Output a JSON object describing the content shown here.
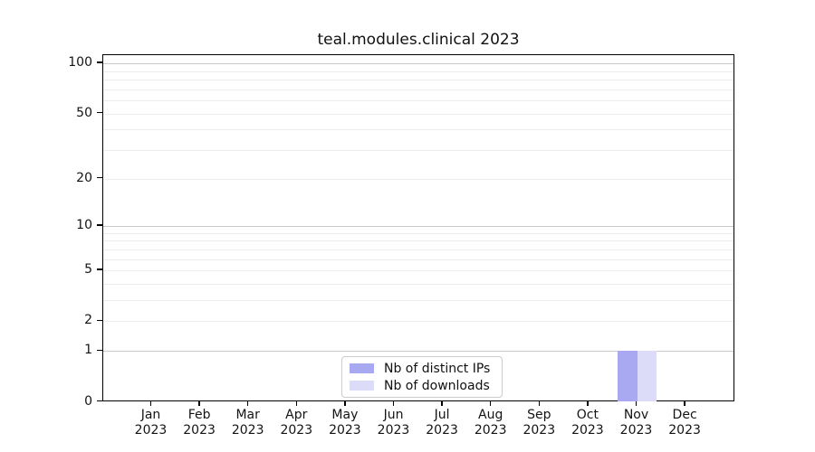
{
  "chart": {
    "title": "teal.modules.clinical 2023"
  },
  "chart_data": {
    "type": "bar",
    "title": "teal.modules.clinical 2023",
    "categories": [
      "Jan 2023",
      "Feb 2023",
      "Mar 2023",
      "Apr 2023",
      "May 2023",
      "Jun 2023",
      "Jul 2023",
      "Aug 2023",
      "Sep 2023",
      "Oct 2023",
      "Nov 2023",
      "Dec 2023"
    ],
    "x_tick_month_labels": [
      "Jan",
      "Feb",
      "Mar",
      "Apr",
      "May",
      "Jun",
      "Jul",
      "Aug",
      "Sep",
      "Oct",
      "Nov",
      "Dec"
    ],
    "x_tick_year_label": "2023",
    "series": [
      {
        "name": "Nb of distinct IPs",
        "color": "#a9a9f2",
        "values": [
          0,
          0,
          0,
          0,
          0,
          0,
          0,
          0,
          0,
          0,
          1,
          0
        ]
      },
      {
        "name": "Nb of downloads",
        "color": "#dcdcf8",
        "values": [
          0,
          0,
          0,
          0,
          0,
          0,
          0,
          0,
          0,
          0,
          1,
          0
        ]
      }
    ],
    "y_axis": {
      "scale": "log10(value+1)",
      "tick_values": [
        100,
        50,
        20,
        10,
        5,
        2,
        1,
        0
      ],
      "major_grid_values": [
        100,
        10,
        1
      ],
      "minor_grid_values": [
        90,
        80,
        70,
        60,
        50,
        40,
        30,
        20,
        9,
        8,
        7,
        6,
        5,
        4,
        3,
        2
      ],
      "ylim": [
        0,
        112
      ]
    },
    "grid": "horizontal",
    "legend_position": "lower center inside plot"
  },
  "legend": {
    "items": [
      {
        "label": "Nb of distinct IPs",
        "color": "#a9a9f2"
      },
      {
        "label": "Nb of downloads",
        "color": "#dcdcf8"
      }
    ]
  },
  "colors": {
    "bar_distinct_ips": "#a9a9f2",
    "bar_downloads": "#dcdcf8",
    "major_grid": "#c9c9c9",
    "minor_grid": "#ededed",
    "axis": "#000000",
    "legend_border": "#cccccc"
  }
}
